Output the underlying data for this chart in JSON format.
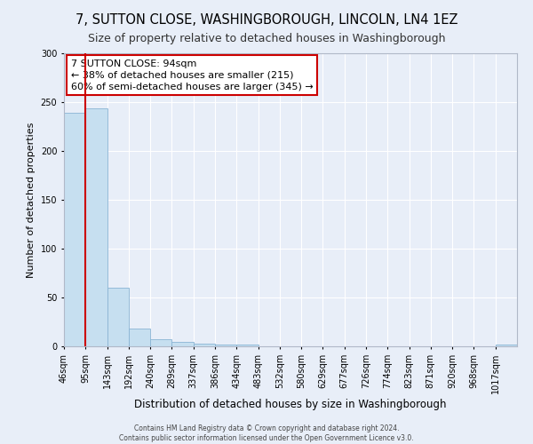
{
  "title": "7, SUTTON CLOSE, WASHINGBOROUGH, LINCOLN, LN4 1EZ",
  "subtitle": "Size of property relative to detached houses in Washingborough",
  "xlabel": "Distribution of detached houses by size in Washingborough",
  "ylabel": "Number of detached properties",
  "bin_labels": [
    "46sqm",
    "95sqm",
    "143sqm",
    "192sqm",
    "240sqm",
    "289sqm",
    "337sqm",
    "386sqm",
    "434sqm",
    "483sqm",
    "532sqm",
    "580sqm",
    "629sqm",
    "677sqm",
    "726sqm",
    "774sqm",
    "823sqm",
    "871sqm",
    "920sqm",
    "968sqm",
    "1017sqm"
  ],
  "bar_heights": [
    239,
    244,
    60,
    18,
    7,
    5,
    3,
    2,
    2,
    0,
    0,
    0,
    0,
    0,
    0,
    0,
    0,
    0,
    0,
    0,
    2
  ],
  "bar_color": "#c6dff0",
  "bar_edge_color": "#8ab4d4",
  "vline_x": 1.0,
  "vline_color": "#cc0000",
  "annotation_text": "7 SUTTON CLOSE: 94sqm\n← 38% of detached houses are smaller (215)\n60% of semi-detached houses are larger (345) →",
  "annotation_box_color": "#cc0000",
  "ylim": [
    0,
    300
  ],
  "yticks": [
    0,
    50,
    100,
    150,
    200,
    250,
    300
  ],
  "background_color": "#e8eef8",
  "grid_color": "#ffffff",
  "footer_line1": "Contains HM Land Registry data © Crown copyright and database right 2024.",
  "footer_line2": "Contains public sector information licensed under the Open Government Licence v3.0.",
  "title_fontsize": 10.5,
  "subtitle_fontsize": 9,
  "annotation_fontsize": 8,
  "ylabel_fontsize": 8,
  "xlabel_fontsize": 8.5,
  "tick_fontsize": 7,
  "footer_fontsize": 5.5
}
